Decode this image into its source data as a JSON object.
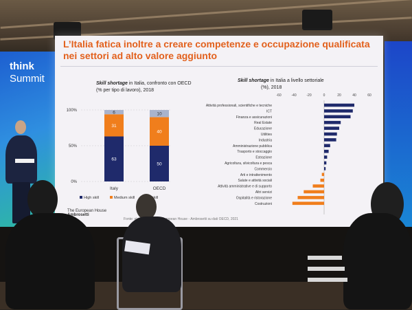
{
  "brand": {
    "line1": "think",
    "line2": "Summit"
  },
  "slide": {
    "title": "L’Italia fatica inoltre a creare competenze e occupazione qualificata nei settori ad alto valore aggiunto",
    "left_sub_italic": "Skill shortage",
    "left_sub_rest": " in Italia, confronto con OECD",
    "left_sub_line2": "(% per tipo di lavoro), 2018",
    "right_sub_italic": "Skill shortage",
    "right_sub_rest": " in Italia a livello settoriale",
    "right_sub_line2": "(%), 2018",
    "source": "Fonte: elaborazione The European House - Ambrosetti su dati OECD, 2021",
    "logo_line1": "The European House",
    "logo_line2": "Ambrosetti"
  },
  "chart_data": [
    {
      "type": "bar",
      "stacked": true,
      "categories": [
        "Italy",
        "OECD"
      ],
      "series": [
        {
          "name": "High skill",
          "values": [
            63,
            50
          ],
          "color": "#1f2a6b"
        },
        {
          "name": "Medium skill",
          "values": [
            31,
            40
          ],
          "color": "#f07e1c"
        },
        {
          "name": "Low skill",
          "values": [
            6,
            10
          ],
          "color": "#a9b3cc"
        }
      ],
      "y_ticks": [
        "0%",
        "50%",
        "100%"
      ],
      "ylim": [
        0,
        100
      ],
      "legend": [
        "High skill",
        "Medium skill",
        "Low skill"
      ],
      "legend_visible": [
        "High skill",
        "Medium skill",
        "skill"
      ]
    },
    {
      "type": "bar",
      "orientation": "horizontal",
      "categories": [
        "Attività professionali, scientifiche e tecniche",
        "ICT",
        "Finanza e assicurazioni",
        "Real Estate",
        "Educazione",
        "Utilities",
        "Industria",
        "Amministrazione pubblica",
        "Trasporto e stoccaggio",
        "Estrazione",
        "Agricoltura, silvicoltura e pesca",
        "Commercio",
        "Arti e intrattenimento",
        "Salute e attività sociali",
        "Attività amministrative e di supporto",
        "Altri servizi",
        "Ospitalità e ristorazione",
        "Costruzioni"
      ],
      "values": [
        40,
        38,
        35,
        22,
        20,
        17,
        16,
        8,
        6,
        4,
        3,
        2,
        -3,
        -5,
        -15,
        -27,
        -35,
        -42
      ],
      "positive_color": "#1f2a6b",
      "negative_color": "#f07e1c",
      "x_ticks": [
        -60,
        -40,
        -20,
        0,
        20,
        40,
        60
      ],
      "xlim": [
        -60,
        60
      ]
    }
  ]
}
